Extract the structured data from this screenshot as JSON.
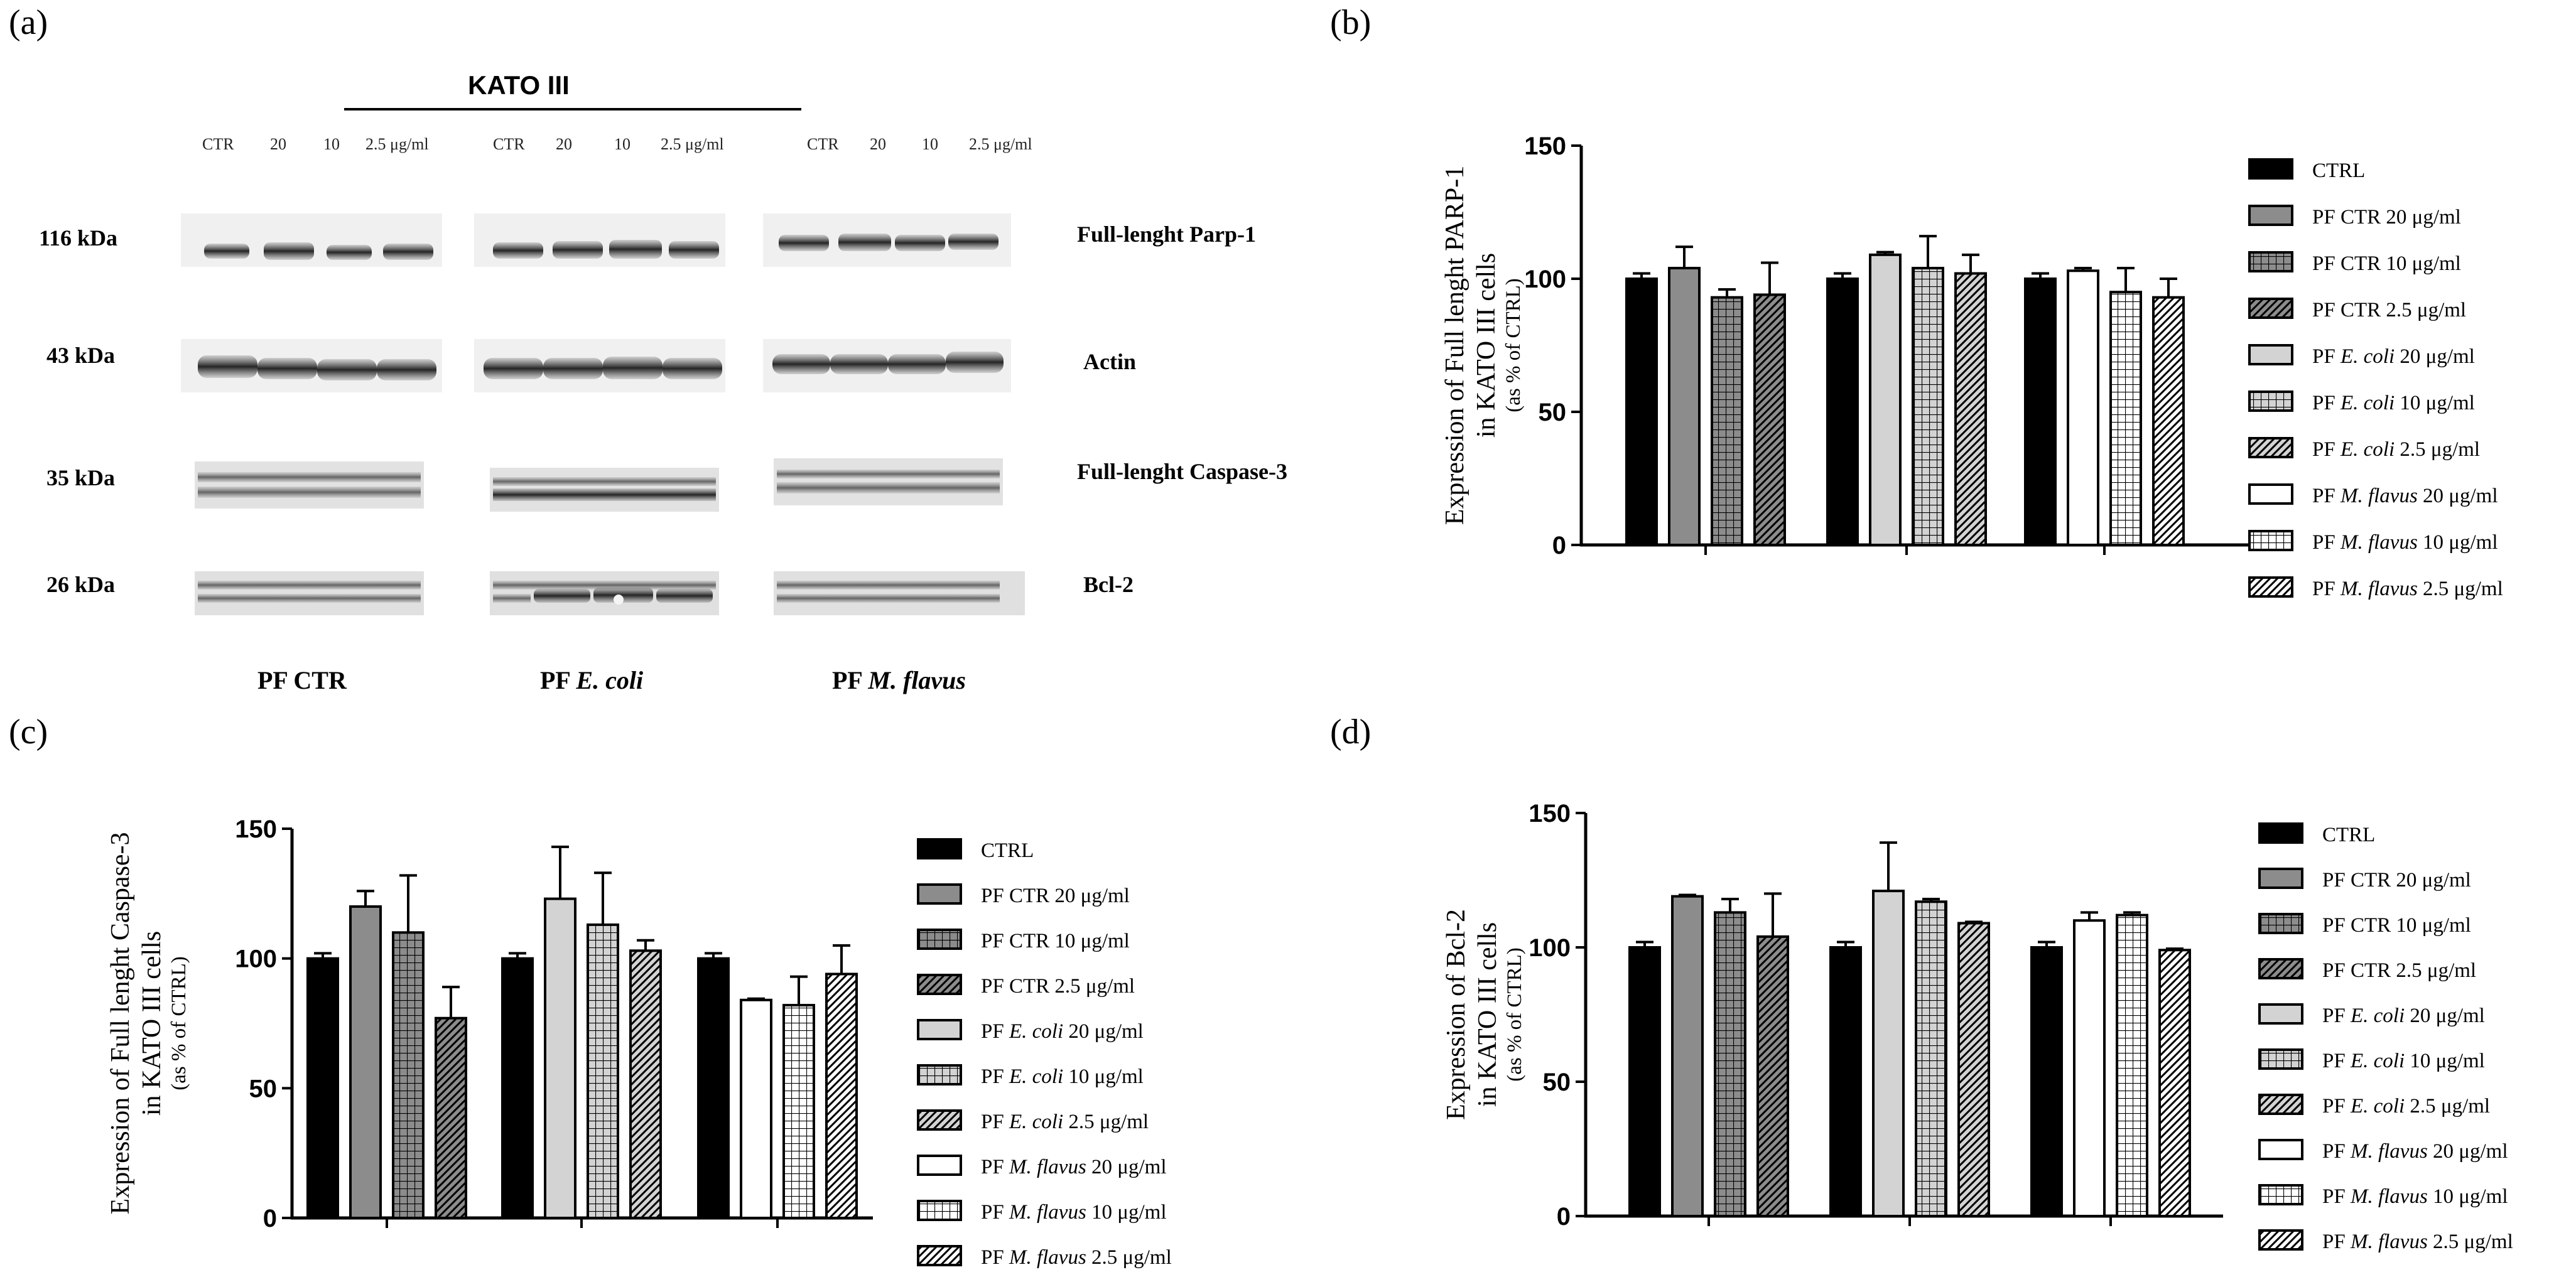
{
  "panel_labels": {
    "a": "(a)",
    "b": "(b)",
    "c": "(c)",
    "d": "(d)"
  },
  "western_blot": {
    "cell_line": "KATO III",
    "lanes": [
      "CTR",
      "20",
      "10",
      "2.5 μg/ml"
    ],
    "markers": [
      "116 kDa",
      "43 kDa",
      "35 kDa",
      "26 kDa"
    ],
    "proteins": [
      "Full-lenght Parp-1",
      "Actin",
      "Full-lenght Caspase-3",
      "Bcl-2"
    ],
    "groups": [
      {
        "pre": "PF ",
        "name": "CTR",
        "italic": false
      },
      {
        "pre": "PF ",
        "name": "E. coli",
        "italic": true
      },
      {
        "pre": "PF ",
        "name": "M. flavus",
        "italic": true
      }
    ]
  },
  "legend": [
    {
      "pre": "",
      "ital": "",
      "post": "CTRL",
      "pattern": "black"
    },
    {
      "pre": "PF CTR 20 μg/ml",
      "ital": "",
      "post": "",
      "pattern": "darkgray"
    },
    {
      "pre": "PF CTR 10 μg/ml",
      "ital": "",
      "post": "",
      "pattern": "grid-gray"
    },
    {
      "pre": "PF CTR 2.5 μg/ml",
      "ital": "",
      "post": "",
      "pattern": "diag-gray"
    },
    {
      "pre": "PF ",
      "ital": "E. coli",
      "post": " 20 μg/ml",
      "pattern": "lightgray"
    },
    {
      "pre": "PF ",
      "ital": "E. coli",
      "post": " 10 μg/ml",
      "pattern": "grid-light"
    },
    {
      "pre": "PF ",
      "ital": "E. coli",
      "post": " 2.5 μg/ml",
      "pattern": "diag-light"
    },
    {
      "pre": "PF ",
      "ital": "M. flavus",
      "post": " 20 μg/ml",
      "pattern": "white"
    },
    {
      "pre": "PF ",
      "ital": "M. flavus",
      "post": " 10 μg/ml",
      "pattern": "grid-white"
    },
    {
      "pre": "PF ",
      "ital": "M. flavus",
      "post": " 2.5 μg/ml",
      "pattern": "diag-white"
    }
  ],
  "chart_data": [
    {
      "panel": "b",
      "type": "bar",
      "ylabel": "Expression of Full lenght PARP-1",
      "ylabel2": "in KATO III cells",
      "ylabel3": "(as % of CTRL)",
      "ylim": [
        0,
        150
      ],
      "yticks": [
        0,
        50,
        100,
        150
      ],
      "groups": [
        {
          "bars": [
            {
              "v": 100,
              "e": 2,
              "p": "black"
            },
            {
              "v": 104,
              "e": 8,
              "p": "darkgray"
            },
            {
              "v": 93,
              "e": 3,
              "p": "grid-gray"
            },
            {
              "v": 94,
              "e": 12,
              "p": "diag-gray"
            }
          ]
        },
        {
          "bars": [
            {
              "v": 100,
              "e": 2,
              "p": "black"
            },
            {
              "v": 109,
              "e": 1,
              "p": "lightgray"
            },
            {
              "v": 104,
              "e": 12,
              "p": "grid-light"
            },
            {
              "v": 102,
              "e": 7,
              "p": "diag-light"
            }
          ]
        },
        {
          "bars": [
            {
              "v": 100,
              "e": 2,
              "p": "black"
            },
            {
              "v": 103,
              "e": 1,
              "p": "white"
            },
            {
              "v": 95,
              "e": 9,
              "p": "grid-white"
            },
            {
              "v": 93,
              "e": 7,
              "p": "diag-white"
            }
          ]
        }
      ]
    },
    {
      "panel": "c",
      "type": "bar",
      "ylabel": "Expression of Full lenght Caspase-3",
      "ylabel2": "in KATO III cells",
      "ylabel3": "(as % of CTRL)",
      "ylim": [
        0,
        150
      ],
      "yticks": [
        0,
        50,
        100,
        150
      ],
      "groups": [
        {
          "bars": [
            {
              "v": 100,
              "e": 2,
              "p": "black"
            },
            {
              "v": 120,
              "e": 6,
              "p": "darkgray"
            },
            {
              "v": 110,
              "e": 22,
              "p": "grid-gray"
            },
            {
              "v": 77,
              "e": 12,
              "p": "diag-gray"
            }
          ]
        },
        {
          "bars": [
            {
              "v": 100,
              "e": 2,
              "p": "black"
            },
            {
              "v": 123,
              "e": 20,
              "p": "lightgray"
            },
            {
              "v": 113,
              "e": 20,
              "p": "grid-light"
            },
            {
              "v": 103,
              "e": 4,
              "p": "diag-light"
            }
          ]
        },
        {
          "bars": [
            {
              "v": 100,
              "e": 2,
              "p": "black"
            },
            {
              "v": 84,
              "e": 0.5,
              "p": "white"
            },
            {
              "v": 82,
              "e": 11,
              "p": "grid-white"
            },
            {
              "v": 94,
              "e": 11,
              "p": "diag-white"
            }
          ]
        }
      ]
    },
    {
      "panel": "d",
      "type": "bar",
      "ylabel": "Expression of Bcl-2",
      "ylabel2": "in KATO III cells",
      "ylabel3": "(as % of CTRL)",
      "ylim": [
        0,
        150
      ],
      "yticks": [
        0,
        50,
        100,
        150
      ],
      "groups": [
        {
          "bars": [
            {
              "v": 100,
              "e": 2,
              "p": "black"
            },
            {
              "v": 119,
              "e": 0.5,
              "p": "darkgray"
            },
            {
              "v": 113,
              "e": 5,
              "p": "grid-gray"
            },
            {
              "v": 104,
              "e": 16,
              "p": "diag-gray"
            }
          ]
        },
        {
          "bars": [
            {
              "v": 100,
              "e": 2,
              "p": "black"
            },
            {
              "v": 121,
              "e": 18,
              "p": "lightgray"
            },
            {
              "v": 117,
              "e": 1,
              "p": "grid-light"
            },
            {
              "v": 109,
              "e": 0.5,
              "p": "diag-light"
            }
          ]
        },
        {
          "bars": [
            {
              "v": 100,
              "e": 2,
              "p": "black"
            },
            {
              "v": 110,
              "e": 3,
              "p": "white"
            },
            {
              "v": 112,
              "e": 1,
              "p": "grid-white"
            },
            {
              "v": 99,
              "e": 0.5,
              "p": "diag-white"
            }
          ]
        }
      ]
    }
  ]
}
